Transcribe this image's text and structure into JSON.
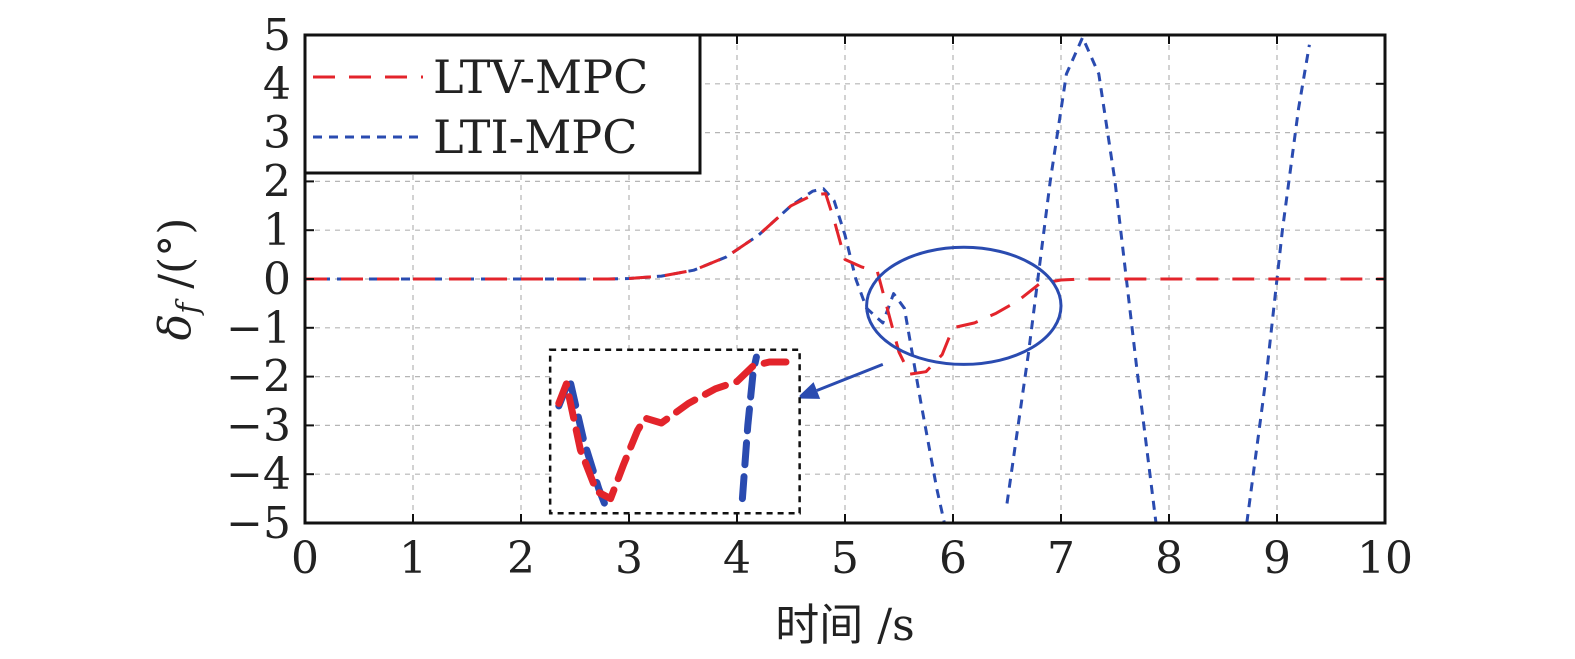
{
  "chart_data": {
    "type": "line",
    "xlabel": "时间 /s",
    "ylabel": "δf /(°)",
    "ylabel_symbol": "δ",
    "ylabel_subscript": "f",
    "ylabel_unit": " /(°)",
    "xlim": [
      0,
      10
    ],
    "ylim": [
      -5,
      5
    ],
    "xticks": [
      "0",
      "1",
      "2",
      "3",
      "4",
      "5",
      "6",
      "7",
      "8",
      "9",
      "10"
    ],
    "yticks": [
      "5",
      "4",
      "3",
      "2",
      "1",
      "0",
      "−1",
      "−2",
      "−3",
      "−4",
      "−5"
    ],
    "grid": true,
    "legend_position": "top-left",
    "series": [
      {
        "name": "LTV-MPC",
        "color": "#e3242b",
        "style": "long-dash",
        "x": [
          0,
          2.8,
          3.0,
          3.3,
          3.6,
          3.9,
          4.2,
          4.5,
          4.7,
          4.82,
          4.9,
          5.0,
          5.15,
          5.3,
          5.5,
          5.6,
          5.75,
          5.9,
          6.0,
          6.2,
          6.4,
          6.6,
          6.8,
          7.0,
          7.2,
          10
        ],
        "y": [
          0,
          0,
          0.01,
          0.06,
          0.18,
          0.45,
          0.9,
          1.5,
          1.72,
          1.75,
          1.2,
          0.4,
          0.25,
          0.15,
          -1.5,
          -1.95,
          -1.9,
          -1.55,
          -1.0,
          -0.9,
          -0.7,
          -0.45,
          -0.1,
          -0.02,
          0,
          0
        ]
      },
      {
        "name": "LTI-MPC",
        "color": "#2a4bb0",
        "style": "short-dash",
        "segments": [
          {
            "x": [
              0,
              2.8,
              3.0,
              3.3,
              3.6,
              3.9,
              4.2,
              4.5,
              4.7,
              4.8,
              4.9,
              5.0,
              5.1,
              5.2,
              5.35,
              5.45,
              5.55,
              5.7,
              5.85,
              5.92
            ],
            "y": [
              0,
              0,
              0.01,
              0.06,
              0.18,
              0.45,
              0.9,
              1.5,
              1.8,
              1.85,
              1.6,
              0.9,
              0.0,
              -0.6,
              -0.9,
              -0.3,
              -0.6,
              -2.5,
              -4.3,
              -5.0
            ]
          },
          {
            "x": [
              6.5,
              6.7,
              6.9,
              7.05,
              7.2,
              7.35,
              7.5,
              7.7,
              7.88
            ],
            "y": [
              -4.6,
              -1.5,
              2.0,
              4.2,
              4.95,
              4.2,
              2.0,
              -1.8,
              -5.0
            ]
          },
          {
            "x": [
              8.72,
              8.9,
              9.05,
              9.2,
              9.3
            ],
            "y": [
              -5.0,
              -2.0,
              1.0,
              3.5,
              4.8
            ]
          }
        ]
      }
    ],
    "annotations": [
      {
        "type": "ellipse",
        "center": [
          6.1,
          -0.55
        ],
        "radii": [
          0.9,
          1.2
        ],
        "color": "#2a4bb0"
      },
      {
        "type": "arrow",
        "from": [
          5.35,
          -1.75
        ],
        "to": [
          4.55,
          -2.45
        ],
        "color": "#2a4bb0"
      },
      {
        "type": "inset-box",
        "x": [
          2.27,
          4.58
        ],
        "y": [
          -4.8,
          -1.45
        ],
        "style": "dotted"
      }
    ],
    "inset": {
      "xlim": [
        2.27,
        4.58
      ],
      "ylim": [
        -4.8,
        -1.45
      ],
      "series": [
        {
          "name": "LTV-MPC",
          "color": "#e3242b",
          "x": [
            2.35,
            2.42,
            2.55,
            2.7,
            2.83,
            2.95,
            3.08,
            3.15,
            3.3,
            3.55,
            3.8,
            4.0,
            4.15,
            4.3,
            4.55
          ],
          "y": [
            -2.55,
            -2.15,
            -3.5,
            -4.35,
            -4.5,
            -3.8,
            -3.1,
            -2.85,
            -2.95,
            -2.55,
            -2.25,
            -2.1,
            -1.78,
            -1.7,
            -1.7
          ]
        },
        {
          "name": "LTI-MPC",
          "color": "#2a4bb0",
          "segments": [
            {
              "x": [
                2.35,
                2.45,
                2.58,
                2.72,
                2.8
              ],
              "y": [
                -2.6,
                -2.05,
                -3.3,
                -4.3,
                -4.75
              ]
            },
            {
              "x": [
                4.05,
                4.1,
                4.15,
                4.18
              ],
              "y": [
                -4.5,
                -3.0,
                -1.9,
                -1.6
              ]
            }
          ]
        }
      ]
    }
  }
}
